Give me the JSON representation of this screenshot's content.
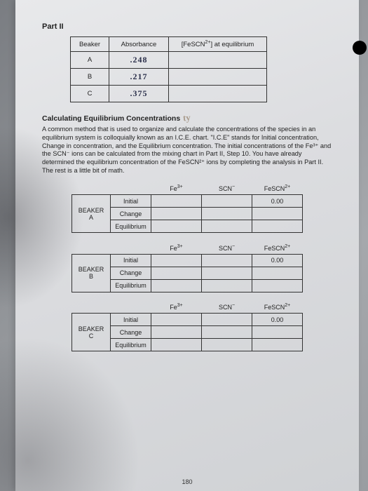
{
  "part_label": "Part II",
  "abs_table": {
    "headers": {
      "beaker": "Beaker",
      "absorbance": "Absorbance",
      "fescn": "[FeSCN²⁺] at equilibrium"
    },
    "rows": [
      {
        "beaker": "A",
        "absorbance": ".248",
        "fescn": ""
      },
      {
        "beaker": "B",
        "absorbance": ".217",
        "fescn": ""
      },
      {
        "beaker": "C",
        "absorbance": ".375",
        "fescn": ""
      }
    ]
  },
  "heading": "Calculating Equilibrium Concentrations",
  "body": "A common method that is used to organize and calculate the concentrations of the species in an equilibrium system is colloquially known as an I.C.E. chart. \"I.C.E\" stands for Initial concentration, Change in concentration, and the Equilibrium concentration. The initial concentrations of the Fe³⁺ and the SCN⁻ ions can be calculated from the mixing chart in Part II, Step 10. You have already determined the equilibrium concentration of the FeSCN²⁺ ions by completing the analysis in Part II. The rest is a little bit of math.",
  "ice": {
    "cols": {
      "fe": "Fe³⁺",
      "scn": "SCN⁻",
      "fescn": "FeSCN²⁺"
    },
    "rows": {
      "initial": "Initial",
      "change": "Change",
      "equilibrium": "Equilibrium"
    },
    "initial_fescn": "0.00",
    "beakers": [
      {
        "label": "BEAKER",
        "sub": "A"
      },
      {
        "label": "BEAKER",
        "sub": "B"
      },
      {
        "label": "BEAKER",
        "sub": "C"
      }
    ]
  },
  "page_number": "180"
}
